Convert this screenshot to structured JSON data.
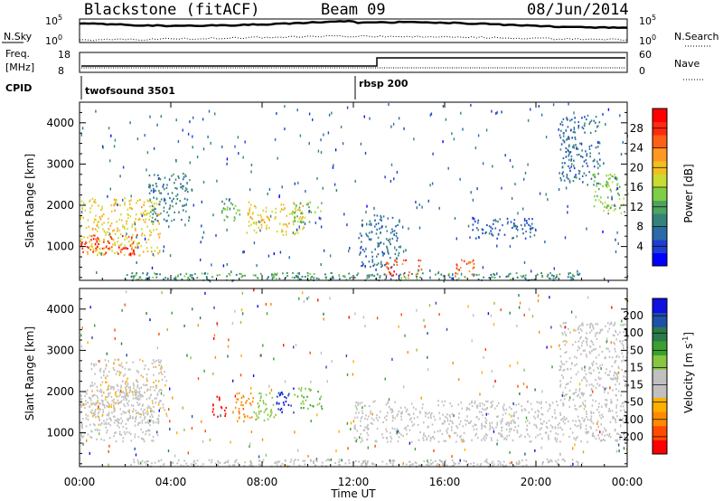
{
  "header": {
    "radar": "Blackstone (fitACF)",
    "beam": "Beam 09",
    "date": "08/Jun/2014"
  },
  "noise_panel": {
    "left_label": "N.Sky",
    "left_ticks": [
      "10^5",
      "10^0"
    ],
    "right_ticks": [
      "10^5",
      "10^0"
    ],
    "right_label": "N.Search",
    "right_legend_style": "dotted"
  },
  "freq_panel": {
    "left_label_1": "Freq.",
    "left_label_2": "[MHz]",
    "left_ticks": [
      "18",
      "8"
    ],
    "right_ticks": [
      "60",
      "0"
    ],
    "right_label": "Nave",
    "right_legend_style": "dotted"
  },
  "cpid_panel": {
    "label": "CPID",
    "programs": [
      {
        "name": "twofsound 3501",
        "start_hour": 0
      },
      {
        "name": "rbsp 200",
        "start_hour": 12.0
      }
    ]
  },
  "time_axis": {
    "label": "Time UT",
    "ticks": [
      "00:00",
      "04:00",
      "08:00",
      "12:00",
      "16:00",
      "20:00",
      "00:00"
    ],
    "range_hours": [
      0,
      24
    ]
  },
  "chart_data": [
    {
      "type": "heatmap",
      "title": "",
      "parameter": "Power",
      "xlabel": "Time UT",
      "ylabel": "Slant Range [km]",
      "xlim_hours": [
        0,
        24
      ],
      "ylim_km": [
        180,
        4500
      ],
      "yticks": [
        "1000",
        "2000",
        "3000",
        "4000"
      ],
      "colorbar": {
        "label": "Power [dB]",
        "ticks": [
          "28",
          "24",
          "20",
          "16",
          "12",
          "8",
          "4"
        ],
        "range": [
          0,
          30
        ],
        "colors": [
          "#0000ff",
          "#1c3fd0",
          "#2a6aa8",
          "#35827a",
          "#4ea35e",
          "#7fcf46",
          "#c8dc33",
          "#f0c020",
          "#ff9820",
          "#ff6018",
          "#ff2a10",
          "#ff0000"
        ]
      },
      "regions": [
        {
          "t": [
            0.0,
            3.5
          ],
          "r": [
            800,
            2200
          ],
          "level": 18
        },
        {
          "t": [
            0.0,
            2.5
          ],
          "r": [
            800,
            1300
          ],
          "level": 26
        },
        {
          "t": [
            3.0,
            4.8
          ],
          "r": [
            1600,
            2800
          ],
          "level": 8
        },
        {
          "t": [
            6.2,
            7.0
          ],
          "r": [
            1600,
            2200
          ],
          "level": 12
        },
        {
          "t": [
            7.3,
            9.8
          ],
          "r": [
            1300,
            2100
          ],
          "level": 18
        },
        {
          "t": [
            9.3,
            10.6
          ],
          "r": [
            1600,
            2100
          ],
          "level": 13
        },
        {
          "t": [
            12.2,
            14.0
          ],
          "r": [
            500,
            1800
          ],
          "level": 7
        },
        {
          "t": [
            13.4,
            15.0
          ],
          "r": [
            300,
            700
          ],
          "level": 25
        },
        {
          "t": [
            16.3,
            17.3
          ],
          "r": [
            300,
            700
          ],
          "level": 24
        },
        {
          "t": [
            17.0,
            20.0
          ],
          "r": [
            1200,
            1700
          ],
          "level": 6
        },
        {
          "t": [
            21.0,
            22.8
          ],
          "r": [
            2500,
            4200
          ],
          "level": 7
        },
        {
          "t": [
            22.5,
            24.0
          ],
          "r": [
            1800,
            2800
          ],
          "level": 14
        }
      ]
    },
    {
      "type": "heatmap",
      "title": "",
      "parameter": "Velocity",
      "xlabel": "Time UT",
      "ylabel": "Slant Range [km]",
      "xlim_hours": [
        0,
        24
      ],
      "ylim_km": [
        180,
        4500
      ],
      "yticks": [
        "1000",
        "2000",
        "3000",
        "4000"
      ],
      "colorbar": {
        "label": "Velocity [m s^-1]",
        "ticks": [
          "200",
          "100",
          "50",
          "15",
          "-15",
          "-50",
          "-100",
          "-200"
        ],
        "range": [
          -250,
          250
        ],
        "colors": [
          "#ff0000",
          "#ff4a00",
          "#ff8a00",
          "#ffb000",
          "#c0c0c0",
          "#c0c0c0",
          "#86c640",
          "#3aa030",
          "#2a7a4a",
          "#2050a8",
          "#1010e0"
        ]
      },
      "regions": [
        {
          "t": [
            0.0,
            3.5
          ],
          "r": [
            800,
            2200
          ],
          "value": -10
        },
        {
          "t": [
            0.5,
            3.8
          ],
          "r": [
            1200,
            2800
          ],
          "value": -60
        },
        {
          "t": [
            5.8,
            6.4
          ],
          "r": [
            1400,
            1900
          ],
          "value": -220
        },
        {
          "t": [
            6.7,
            7.6
          ],
          "r": [
            1300,
            2000
          ],
          "value": -150
        },
        {
          "t": [
            7.6,
            8.6
          ],
          "r": [
            1300,
            2000
          ],
          "value": 40
        },
        {
          "t": [
            8.6,
            9.4
          ],
          "r": [
            1500,
            2100
          ],
          "value": 210
        },
        {
          "t": [
            9.4,
            10.6
          ],
          "r": [
            1600,
            2100
          ],
          "value": 60
        },
        {
          "t": [
            12.0,
            24.0
          ],
          "r": [
            800,
            1800
          ],
          "value": 0
        },
        {
          "t": [
            21.0,
            24.0
          ],
          "r": [
            1800,
            3700
          ],
          "value": -5
        }
      ]
    }
  ]
}
